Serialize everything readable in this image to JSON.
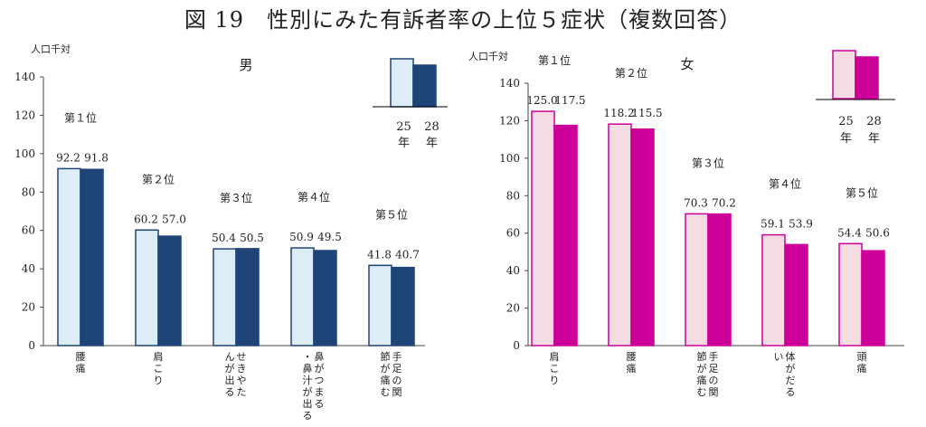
{
  "figure_title": "図 19　性別にみた有訴者率の上位５症状（複数回答）",
  "colors": {
    "male_25_fill": "#dcedf7",
    "male_25_stroke": "#1f4478",
    "male_28": "#1f4478",
    "female_25_fill": "#f5dce2",
    "female_25_stroke": "#cc0099",
    "female_28": "#cc0099",
    "axis": "#444444"
  },
  "chart_data": [
    {
      "type": "bar",
      "title": "男",
      "ylabel": "人口千対",
      "ylim": [
        0,
        140
      ],
      "yticks": [
        0,
        20,
        40,
        60,
        80,
        100,
        120,
        140
      ],
      "categories": [
        "腰痛",
        "肩こり",
        "せきやたんが出る",
        "鼻がつまる・鼻汁が出る",
        "手足の関節が痛む"
      ],
      "category_lines": [
        [
          "腰",
          "痛"
        ],
        [
          "肩",
          "こ",
          "り"
        ],
        [
          "せ",
          "き",
          "や",
          "た",
          "ん",
          "が",
          "出",
          "る"
        ],
        [
          "鼻",
          "が",
          "つ",
          "ま",
          "る",
          "・",
          "鼻",
          "汁",
          "が",
          "出",
          "る"
        ],
        [
          "手",
          "足",
          "の",
          "関",
          "節",
          "が",
          "痛",
          "む"
        ]
      ],
      "ranks": [
        "第１位",
        "第２位",
        "第３位",
        "第４位",
        "第５位"
      ],
      "series": [
        {
          "name": "25年",
          "values": [
            92.2,
            60.2,
            50.4,
            50.9,
            41.8
          ]
        },
        {
          "name": "28年",
          "values": [
            91.8,
            57.0,
            50.5,
            49.5,
            40.7
          ]
        }
      ],
      "value_labels": [
        [
          "92.2",
          "60.2",
          "50.4",
          "50.9",
          "41.8"
        ],
        [
          "91.8",
          "57.0",
          "50.5",
          "49.5",
          "40.7"
        ]
      ],
      "legend": {
        "placement": "top-right",
        "top_labels": [
          "25",
          "28"
        ],
        "bottom_labels": [
          "年",
          "年"
        ]
      },
      "grid": false
    },
    {
      "type": "bar",
      "title": "女",
      "ylabel": "人口千対",
      "ylim": [
        0,
        140
      ],
      "yticks": [
        0,
        20,
        40,
        60,
        80,
        100,
        120,
        140
      ],
      "categories": [
        "肩こり",
        "腰痛",
        "手足の関節が痛む",
        "体がだるい",
        "頭痛"
      ],
      "category_lines": [
        [
          "肩",
          "こ",
          "り"
        ],
        [
          "腰",
          "痛"
        ],
        [
          "手",
          "足",
          "の",
          "関",
          "節",
          "が",
          "痛",
          "む"
        ],
        [
          "体",
          "が",
          "だ",
          "る",
          "い"
        ],
        [
          "頭",
          "痛"
        ]
      ],
      "ranks": [
        "第１位",
        "第２位",
        "第３位",
        "第４位",
        "第５位"
      ],
      "series": [
        {
          "name": "25年",
          "values": [
            125.0,
            118.2,
            70.3,
            59.1,
            54.4
          ]
        },
        {
          "name": "28年",
          "values": [
            117.5,
            115.5,
            70.2,
            53.9,
            50.6
          ]
        }
      ],
      "value_labels": [
        [
          "125.0",
          "118.2",
          "70.3",
          "59.1",
          "54.4"
        ],
        [
          "117.5",
          "115.5",
          "70.2",
          "53.9",
          "50.6"
        ]
      ],
      "legend": {
        "placement": "top-right",
        "top_labels": [
          "25",
          "28"
        ],
        "bottom_labels": [
          "年",
          "年"
        ]
      },
      "grid": false
    }
  ]
}
